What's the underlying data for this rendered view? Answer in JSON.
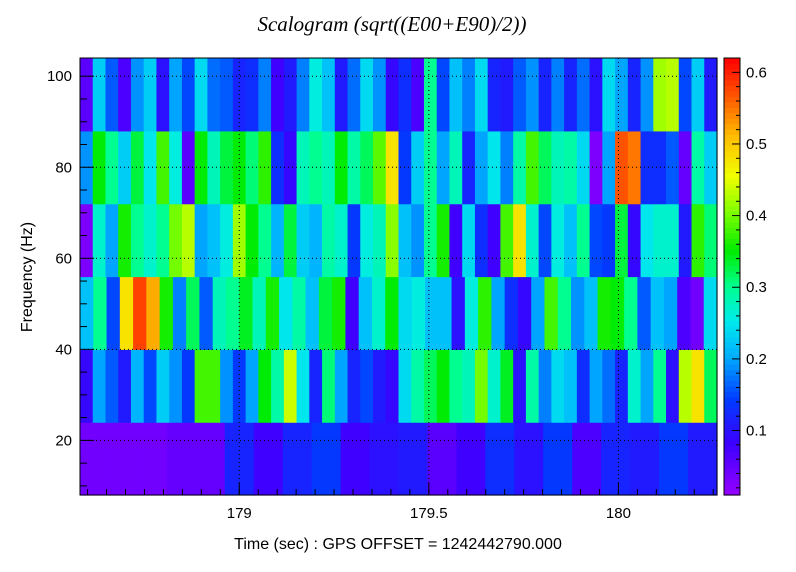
{
  "chart_data": {
    "type": "heatmap",
    "title": "Scalogram (sqrt((E00+E90)/2))",
    "xlabel": "Time (sec) : GPS OFFSET = 1242442790.000",
    "ylabel": "Frequency (Hz)",
    "xlim": [
      178.58,
      180.26
    ],
    "ylim": [
      8,
      104
    ],
    "x_ticks": [
      179,
      179.5,
      180
    ],
    "x_tick_labels": [
      "179",
      "179.5",
      "180"
    ],
    "y_ticks": [
      20,
      40,
      60,
      80,
      100
    ],
    "y_tick_labels": [
      "20",
      "40",
      "60",
      "80",
      "100"
    ],
    "colorbar": {
      "range": [
        0.01,
        0.62
      ],
      "ticks": [
        0.1,
        0.2,
        0.3,
        0.4,
        0.5,
        0.6
      ],
      "tick_labels": [
        "0.1",
        "0.2",
        "0.3",
        "0.4",
        "0.5",
        "0.6"
      ]
    },
    "grid": true,
    "rows": [
      {
        "freq_range": [
          8,
          24
        ],
        "cells": 22,
        "values": [
          0.04,
          0.04,
          0.04,
          0.05,
          0.05,
          0.12,
          0.08,
          0.12,
          0.14,
          0.08,
          0.1,
          0.11,
          0.06,
          0.08,
          0.13,
          0.1,
          0.14,
          0.07,
          0.12,
          0.11,
          0.14,
          0.11
        ]
      },
      {
        "freq_range": [
          24,
          40
        ],
        "cells": 50,
        "values": [
          0.09,
          0.2,
          0.16,
          0.11,
          0.21,
          0.15,
          0.23,
          0.19,
          0.14,
          0.38,
          0.38,
          0.19,
          0.14,
          0.2,
          0.35,
          0.29,
          0.44,
          0.25,
          0.12,
          0.31,
          0.2,
          0.12,
          0.15,
          0.11,
          0.09,
          0.24,
          0.29,
          0.32,
          0.35,
          0.3,
          0.28,
          0.4,
          0.27,
          0.34,
          0.1,
          0.29,
          0.18,
          0.24,
          0.22,
          0.13,
          0.2,
          0.17,
          0.12,
          0.27,
          0.2,
          0.3,
          0.1,
          0.43,
          0.48,
          0.32
        ]
      },
      {
        "freq_range": [
          40,
          56
        ],
        "cells": 48,
        "values": [
          0.22,
          0.3,
          0.15,
          0.48,
          0.58,
          0.52,
          0.36,
          0.18,
          0.32,
          0.16,
          0.28,
          0.3,
          0.34,
          0.28,
          0.36,
          0.25,
          0.29,
          0.22,
          0.33,
          0.36,
          0.08,
          0.22,
          0.27,
          0.35,
          0.24,
          0.26,
          0.22,
          0.22,
          0.1,
          0.26,
          0.37,
          0.2,
          0.13,
          0.09,
          0.2,
          0.38,
          0.3,
          0.19,
          0.22,
          0.36,
          0.35,
          0.3,
          0.16,
          0.22,
          0.2,
          0.07,
          0.04,
          0.24
        ]
      },
      {
        "freq_range": [
          56,
          72
        ],
        "cells": 50,
        "values": [
          0.03,
          0.27,
          0.2,
          0.36,
          0.3,
          0.27,
          0.3,
          0.4,
          0.43,
          0.2,
          0.22,
          0.26,
          0.42,
          0.35,
          0.3,
          0.21,
          0.33,
          0.23,
          0.21,
          0.29,
          0.27,
          0.14,
          0.26,
          0.28,
          0.41,
          0.22,
          0.19,
          0.3,
          0.36,
          0.08,
          0.24,
          0.13,
          0.08,
          0.38,
          0.48,
          0.27,
          0.15,
          0.26,
          0.22,
          0.3,
          0.15,
          0.14,
          0.33,
          0.09,
          0.25,
          0.27,
          0.27,
          0.11,
          0.37,
          0.31
        ]
      },
      {
        "freq_range": [
          72,
          88
        ],
        "cells": 50,
        "values": [
          0.19,
          0.35,
          0.3,
          0.23,
          0.33,
          0.25,
          0.38,
          0.26,
          0.06,
          0.35,
          0.28,
          0.33,
          0.35,
          0.31,
          0.37,
          0.13,
          0.09,
          0.28,
          0.3,
          0.28,
          0.35,
          0.29,
          0.32,
          0.39,
          0.48,
          0.14,
          0.23,
          0.3,
          0.2,
          0.28,
          0.12,
          0.2,
          0.25,
          0.18,
          0.29,
          0.38,
          0.32,
          0.28,
          0.29,
          0.24,
          0.03,
          0.2,
          0.57,
          0.55,
          0.13,
          0.13,
          0.16,
          0.05,
          0.29,
          0.23
        ]
      },
      {
        "freq_range": [
          88,
          104
        ],
        "cells": 50,
        "values": [
          0.06,
          0.23,
          0.16,
          0.07,
          0.19,
          0.23,
          0.1,
          0.2,
          0.15,
          0.24,
          0.17,
          0.16,
          0.12,
          0.13,
          0.18,
          0.08,
          0.11,
          0.18,
          0.26,
          0.22,
          0.11,
          0.17,
          0.24,
          0.19,
          0.09,
          0.13,
          0.07,
          0.3,
          0.15,
          0.22,
          0.18,
          0.24,
          0.12,
          0.11,
          0.16,
          0.19,
          0.12,
          0.18,
          0.12,
          0.17,
          0.1,
          0.24,
          0.2,
          0.12,
          0.19,
          0.42,
          0.43,
          0.15,
          0.23,
          0.11
        ]
      }
    ]
  }
}
